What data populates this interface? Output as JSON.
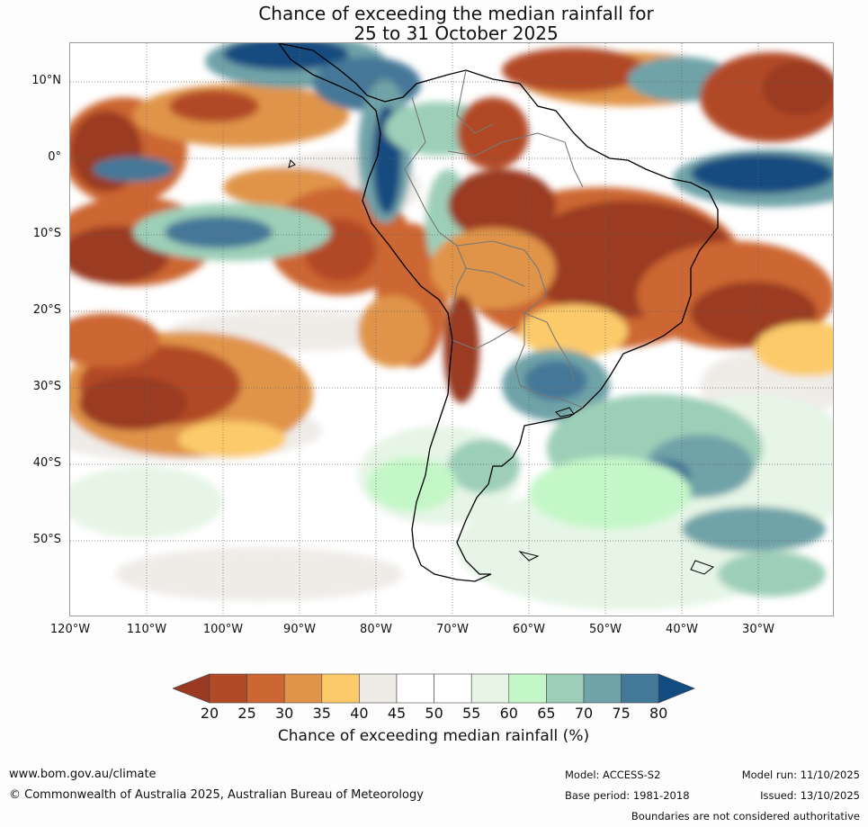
{
  "title": {
    "line1": "Chance of exceeding the median rainfall for",
    "line2": "25 to 31 October 2025"
  },
  "map": {
    "region": "South America",
    "lat_labels": [
      "10°N",
      "0°",
      "10°S",
      "20°S",
      "30°S",
      "40°S",
      "50°S"
    ],
    "lon_labels": [
      "120°W",
      "110°W",
      "100°W",
      "90°W",
      "80°W",
      "70°W",
      "60°W",
      "50°W",
      "40°W",
      "30°W"
    ]
  },
  "colorbar": {
    "ticks": [
      "20",
      "25",
      "30",
      "35",
      "40",
      "45",
      "50",
      "55",
      "60",
      "65",
      "70",
      "75",
      "80"
    ],
    "colors": [
      "#9a3a22",
      "#b24a28",
      "#cc6633",
      "#e0944a",
      "#fcca6a",
      "#efece8",
      "#ffffff",
      "#ffffff",
      "#e6f5e6",
      "#c4f7c8",
      "#9dcfb8",
      "#6fa3a8",
      "#447898",
      "#124b80"
    ],
    "label": "Chance of exceeding median rainfall (%)"
  },
  "footer": {
    "url": "www.bom.gov.au/climate",
    "copyright": "© Commonwealth of Australia 2025, Australian Bureau of Meteorology",
    "model": "Model: ACCESS-S2",
    "base_period": "Base period: 1981-2018",
    "model_run": "Model run: 11/10/2025",
    "issued": "Issued: 13/10/2025",
    "disclaimer": "Boundaries are not considered authoritative"
  }
}
